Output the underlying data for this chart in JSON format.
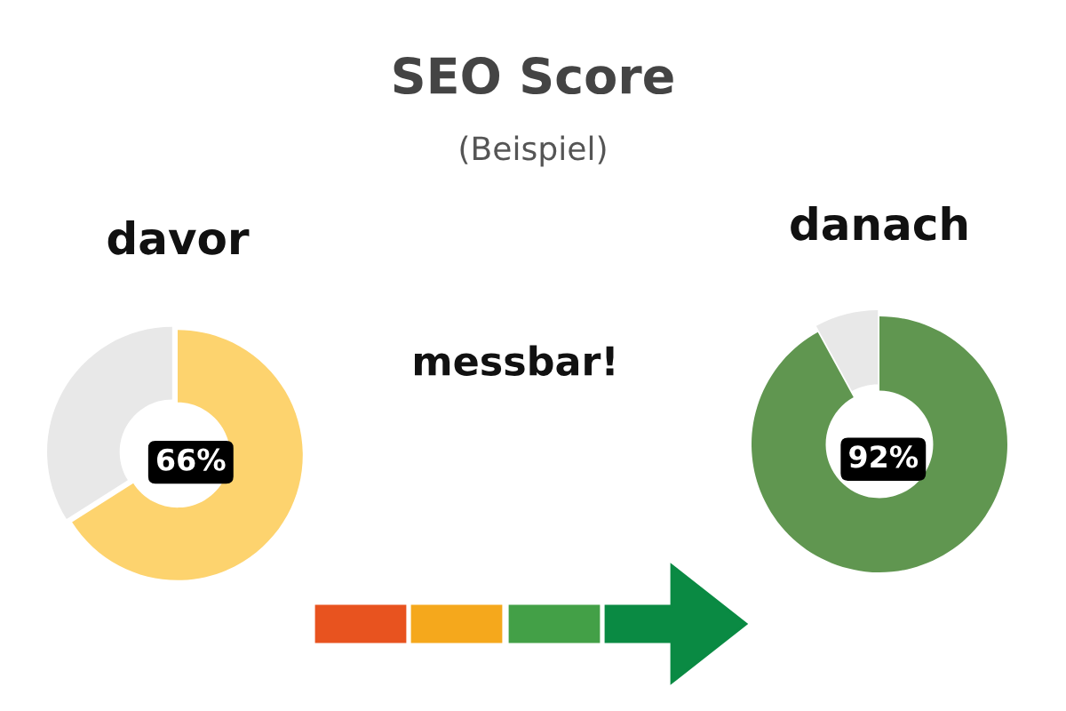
{
  "chart_data": [
    {
      "type": "other",
      "title": "SEO Score",
      "subtitle": "(Beispiel)",
      "annotations": [
        "messbar!"
      ]
    },
    {
      "type": "donut",
      "title": "davor",
      "categories": [
        null,
        null
      ],
      "values": [
        66,
        34
      ],
      "colors": [
        "#fdd36e",
        "#e8e8e8"
      ],
      "value_labels": [
        "66%",
        null
      ]
    },
    {
      "type": "donut",
      "title": "danach",
      "categories": [
        null,
        null
      ],
      "values": [
        92,
        8
      ],
      "colors": [
        "#609650",
        "#e8e8e8"
      ],
      "value_labels": [
        "92%",
        null
      ]
    }
  ]
}
